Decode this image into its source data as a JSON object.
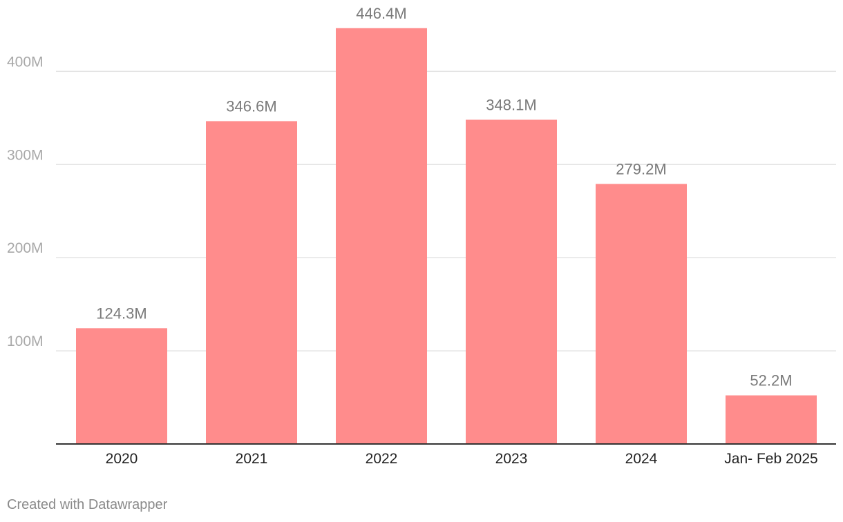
{
  "chart_data": {
    "type": "bar",
    "title": "",
    "xlabel": "",
    "ylabel": "",
    "categories": [
      "2020",
      "2021",
      "2022",
      "2023",
      "2024",
      "Jan- Feb 2025"
    ],
    "values": [
      124.3,
      346.6,
      446.4,
      348.1,
      279.2,
      52.2
    ],
    "value_labels": [
      "124.3M",
      "346.6M",
      "446.4M",
      "348.1M",
      "279.2M",
      "52.2M"
    ],
    "units": "M",
    "ylim": [
      0,
      400
    ],
    "yticks": [
      100,
      200,
      300,
      400
    ],
    "ytick_labels": [
      "100M",
      "200M",
      "300M",
      "400M"
    ],
    "grid": true,
    "legend": "none",
    "bar_color": "#ff8c8c"
  },
  "footer": {
    "credit": "Created with Datawrapper"
  }
}
